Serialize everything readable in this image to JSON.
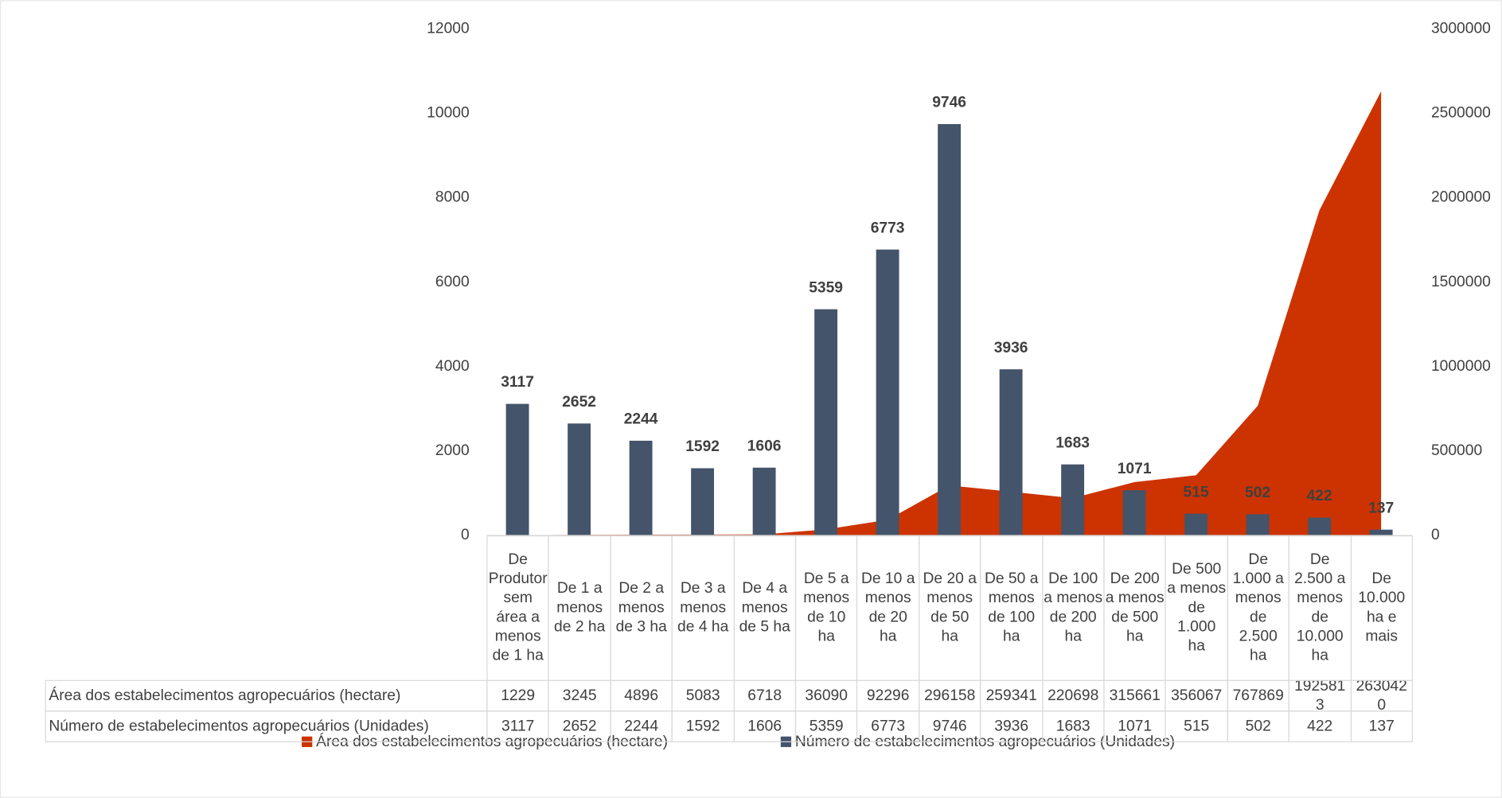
{
  "chart_data": {
    "type": "bar-area",
    "categories": [
      "De Produtor sem área a menos de 1 ha",
      "De 1 a menos de 2 ha",
      "De 2 a menos de 3 ha",
      "De 3 a menos de 4 ha",
      "De 4 a menos de 5 ha",
      "De 5 a menos de 10 ha",
      "De 10 a menos de 20 ha",
      "De 20 a menos de 50 ha",
      "De 50 a menos de 100 ha",
      "De 100 a menos de 200 ha",
      "De 200 a menos de 500 ha",
      "De 500 a menos de 1.000 ha",
      "De 1.000 a menos de 2.500 ha",
      "De 2.500 a menos de 10.000 ha",
      "De 10.000 ha e mais"
    ],
    "series": [
      {
        "name": "Área dos estabelecimentos agropecuários (hectare)",
        "color": "#cc3300",
        "kind": "area",
        "axis": "y2",
        "values": [
          1229,
          3245,
          4896,
          5083,
          6718,
          36090,
          92296,
          296158,
          259341,
          220698,
          315661,
          356067,
          767869,
          1925813,
          2630420
        ]
      },
      {
        "name": "Número de estabelecimentos agropecuários (Unidades)",
        "color": "#44546a",
        "kind": "bar",
        "axis": "y",
        "values": [
          3117,
          2652,
          2244,
          1592,
          1606,
          5359,
          6773,
          9746,
          3936,
          1683,
          1071,
          515,
          502,
          422,
          137
        ]
      }
    ],
    "ylim": [
      0,
      12000
    ],
    "yticks": [
      0,
      2000,
      4000,
      6000,
      8000,
      10000,
      12000
    ],
    "y2lim": [
      0,
      3000000
    ],
    "y2ticks": [
      0,
      500000,
      1000000,
      1500000,
      2000000,
      2500000,
      3000000
    ],
    "grid": false,
    "legend": "bottom",
    "data_table": true
  }
}
